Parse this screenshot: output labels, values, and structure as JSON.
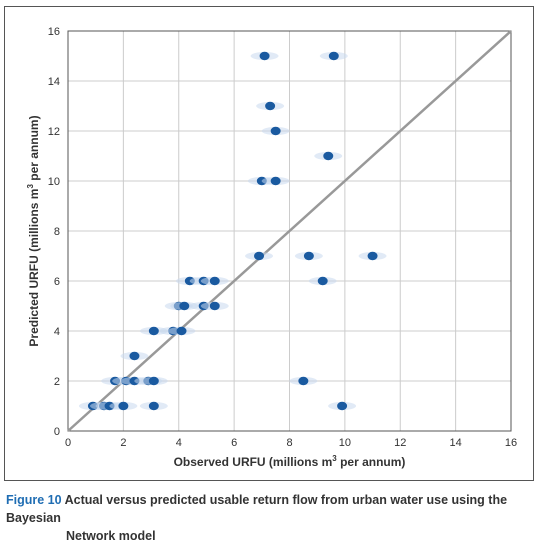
{
  "chart_data": {
    "type": "scatter",
    "xlabel": "Observed URFU (millions m",
    "xlabel_sup": "3",
    "xlabel_rest": " per annum)",
    "ylabel": "Predicted URFU (millions m",
    "ylabel_sup": "3",
    "ylabel_rest": " per annum)",
    "xlim": [
      0,
      16
    ],
    "ylim": [
      0,
      16
    ],
    "xticks": [
      0,
      2,
      4,
      6,
      8,
      10,
      12,
      14,
      16
    ],
    "yticks": [
      0,
      2,
      4,
      6,
      8,
      10,
      12,
      14,
      16
    ],
    "grid": true,
    "reference_line": {
      "from": [
        0,
        0
      ],
      "to": [
        16,
        16
      ],
      "color": "#999999"
    },
    "point_color": "#1a5aa0",
    "points": [
      [
        0.9,
        1
      ],
      [
        1.3,
        1
      ],
      [
        1.5,
        1
      ],
      [
        2.0,
        1
      ],
      [
        3.1,
        1
      ],
      [
        9.9,
        1
      ],
      [
        1.7,
        2
      ],
      [
        2.1,
        2
      ],
      [
        2.4,
        2
      ],
      [
        2.9,
        2
      ],
      [
        3.1,
        2
      ],
      [
        8.5,
        2
      ],
      [
        2.4,
        3
      ],
      [
        3.1,
        4
      ],
      [
        3.8,
        4
      ],
      [
        4.1,
        4
      ],
      [
        4.0,
        5
      ],
      [
        4.2,
        5
      ],
      [
        4.9,
        5
      ],
      [
        5.3,
        5
      ],
      [
        4.4,
        6
      ],
      [
        4.9,
        6
      ],
      [
        5.3,
        6
      ],
      [
        9.2,
        6
      ],
      [
        6.9,
        7
      ],
      [
        8.7,
        7
      ],
      [
        11.0,
        7
      ],
      [
        7.0,
        10
      ],
      [
        7.5,
        10
      ],
      [
        9.4,
        11
      ],
      [
        7.5,
        12
      ],
      [
        7.3,
        13
      ],
      [
        7.1,
        15
      ],
      [
        9.6,
        15
      ]
    ]
  },
  "caption": {
    "label": "Figure 10",
    "text_line1": " Actual versus predicted usable return flow from urban water use using the Bayesian",
    "text_line2": "Network model"
  }
}
